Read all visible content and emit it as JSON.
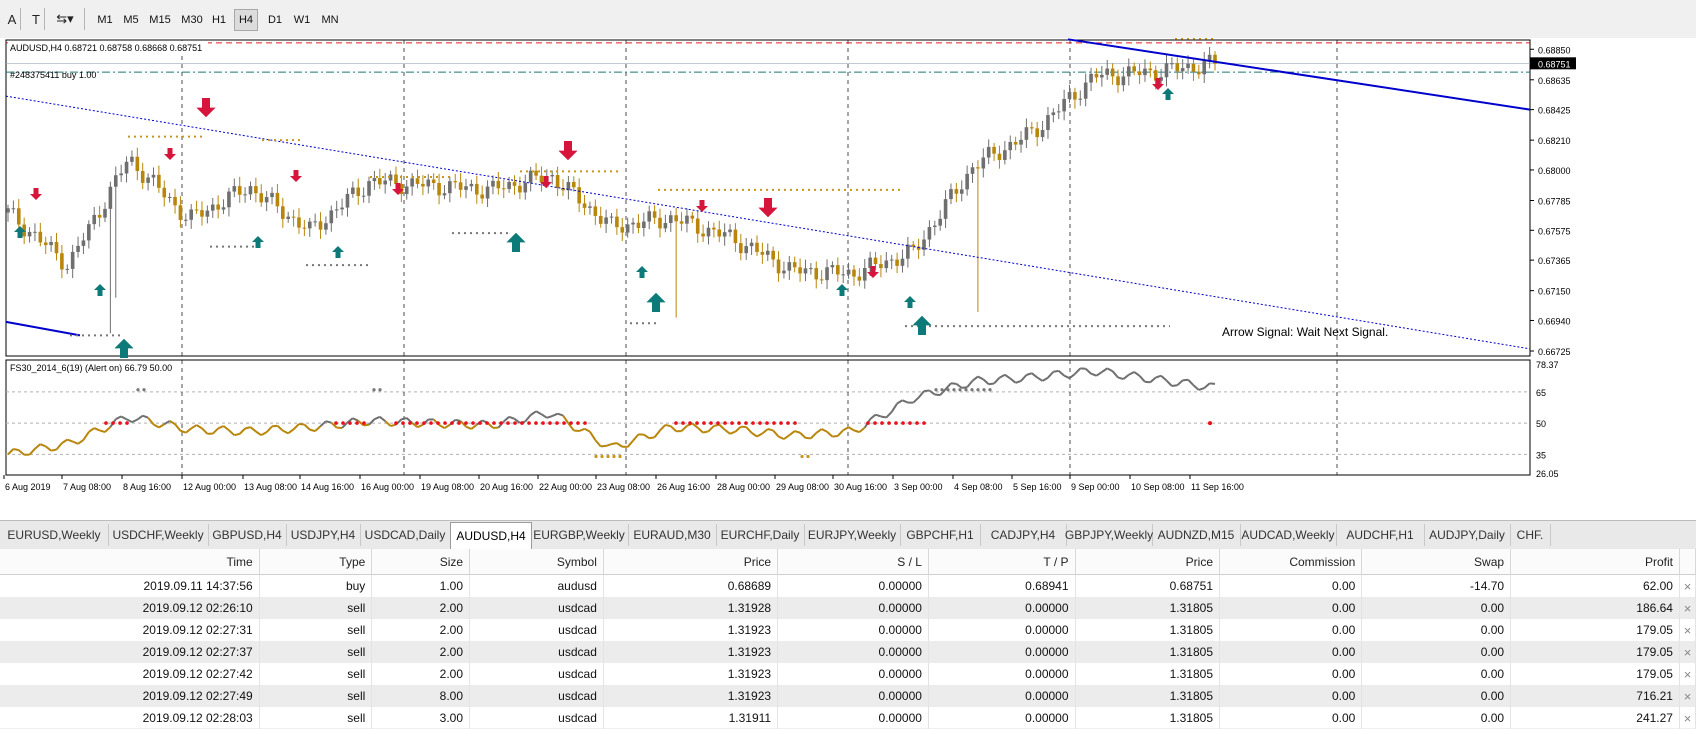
{
  "toolbar": {
    "tools": [
      {
        "label": "A",
        "icon": "text-tool-icon"
      },
      {
        "label": "T",
        "icon": "label-tool-icon"
      },
      {
        "label": "⇆▾",
        "icon": "arrows-tool-icon"
      }
    ],
    "timeframes": [
      "M1",
      "M5",
      "M15",
      "M30",
      "H1",
      "H4",
      "D1",
      "W1",
      "MN"
    ],
    "active_timeframe": "H4"
  },
  "chart": {
    "header": "AUDUSD,H4  0.68721 0.68758 0.68668 0.68751",
    "order_label": "#248375411 buy 1.00",
    "signal_text": "Arrow Signal: Wait Next Signal.",
    "current_price": "0.68751",
    "price_ticks": [
      "0.68850",
      "0.68635",
      "0.68425",
      "0.68210",
      "0.68000",
      "0.67785",
      "0.67575",
      "0.67365",
      "0.67150",
      "0.66940",
      "0.66725"
    ],
    "date_labels": [
      "6 Aug 2019",
      "7 Aug 08:00",
      "8 Aug 16:00",
      "12 Aug 00:00",
      "13 Aug 08:00",
      "14 Aug 16:00",
      "16 Aug 00:00",
      "19 Aug 08:00",
      "20 Aug 16:00",
      "22 Aug 00:00",
      "23 Aug 08:00",
      "26 Aug 16:00",
      "28 Aug 00:00",
      "29 Aug 08:00",
      "30 Aug 16:00",
      "3 Sep 00:00",
      "4 Sep 08:00",
      "5 Sep 16:00",
      "9 Sep 00:00",
      "10 Sep 08:00",
      "11 Sep 16:00"
    ],
    "indicator_label": "FS30_2014_6(19) (Alert on) 66.79 50.00",
    "indicator_ticks": [
      "78.37",
      "65",
      "50",
      "35",
      "26.05"
    ],
    "colors": {
      "bull": "#6f6f6f",
      "bear": "#b8860b",
      "down_arrow": "#d6143c",
      "up_arrow": "#0b7a78",
      "trend": "#0000cd",
      "dots_red": "#e8101a"
    }
  },
  "chart_data": {
    "type": "candlestick",
    "symbol": "AUDUSD",
    "timeframe": "H4",
    "x": [
      "6 Aug 2019",
      "7 Aug 08:00",
      "8 Aug 16:00",
      "12 Aug 00:00",
      "13 Aug 08:00",
      "14 Aug 16:00",
      "16 Aug 00:00",
      "19 Aug 08:00",
      "20 Aug 16:00",
      "22 Aug 00:00",
      "23 Aug 08:00",
      "26 Aug 16:00",
      "28 Aug 00:00",
      "29 Aug 08:00",
      "30 Aug 16:00",
      "3 Sep 00:00",
      "4 Sep 08:00",
      "5 Sep 16:00",
      "9 Sep 00:00",
      "10 Sep 08:00",
      "11 Sep 16:00"
    ],
    "close": [
      0.677,
      0.6733,
      0.6808,
      0.6765,
      0.6788,
      0.6757,
      0.6792,
      0.6789,
      0.6786,
      0.6796,
      0.676,
      0.6766,
      0.6752,
      0.6729,
      0.6727,
      0.6742,
      0.6803,
      0.6827,
      0.6866,
      0.6869,
      0.6875
    ],
    "ylim": [
      0.66725,
      0.689
    ],
    "indicator": {
      "name": "FS30_2014_6(19)",
      "values": [
        35,
        40,
        53,
        47,
        46,
        48,
        51,
        50,
        49,
        55,
        38,
        48,
        47,
        44,
        46,
        62,
        70,
        72,
        75,
        71,
        67
      ],
      "ylim": [
        26.05,
        78.37
      ],
      "levels": [
        65,
        50,
        35
      ]
    }
  },
  "tabs": [
    "EURUSD,Weekly",
    "USDCHF,Weekly",
    "GBPUSD,H4",
    "USDJPY,H4",
    "USDCAD,Daily",
    "AUDUSD,H4",
    "EURGBP,Weekly",
    "EURAUD,M30",
    "EURCHF,Daily",
    "EURJPY,Weekly",
    "GBPCHF,H1",
    "CADJPY,H4",
    "GBPJPY,Weekly",
    "AUDNZD,M15",
    "AUDCAD,Weekly",
    "AUDCHF,H1",
    "AUDJPY,Daily",
    "CHF."
  ],
  "active_tab": "AUDUSD,H4",
  "trades": {
    "columns": [
      "Time",
      "Type",
      "Size",
      "Symbol",
      "Price",
      "S / L",
      "T / P",
      "Price",
      "Commission",
      "Swap",
      "Profit"
    ],
    "rows": [
      [
        "2019.09.11 14:37:56",
        "buy",
        "1.00",
        "audusd",
        "0.68689",
        "0.00000",
        "0.68941",
        "0.68751",
        "0.00",
        "-14.70",
        "62.00"
      ],
      [
        "2019.09.12 02:26:10",
        "sell",
        "2.00",
        "usdcad",
        "1.31928",
        "0.00000",
        "0.00000",
        "1.31805",
        "0.00",
        "0.00",
        "186.64"
      ],
      [
        "2019.09.12 02:27:31",
        "sell",
        "2.00",
        "usdcad",
        "1.31923",
        "0.00000",
        "0.00000",
        "1.31805",
        "0.00",
        "0.00",
        "179.05"
      ],
      [
        "2019.09.12 02:27:37",
        "sell",
        "2.00",
        "usdcad",
        "1.31923",
        "0.00000",
        "0.00000",
        "1.31805",
        "0.00",
        "0.00",
        "179.05"
      ],
      [
        "2019.09.12 02:27:42",
        "sell",
        "2.00",
        "usdcad",
        "1.31923",
        "0.00000",
        "0.00000",
        "1.31805",
        "0.00",
        "0.00",
        "179.05"
      ],
      [
        "2019.09.12 02:27:49",
        "sell",
        "8.00",
        "usdcad",
        "1.31923",
        "0.00000",
        "0.00000",
        "1.31805",
        "0.00",
        "0.00",
        "716.21"
      ],
      [
        "2019.09.12 02:28:03",
        "sell",
        "3.00",
        "usdcad",
        "1.31911",
        "0.00000",
        "0.00000",
        "1.31805",
        "0.00",
        "0.00",
        "241.27"
      ]
    ],
    "close_glyph": "×"
  }
}
